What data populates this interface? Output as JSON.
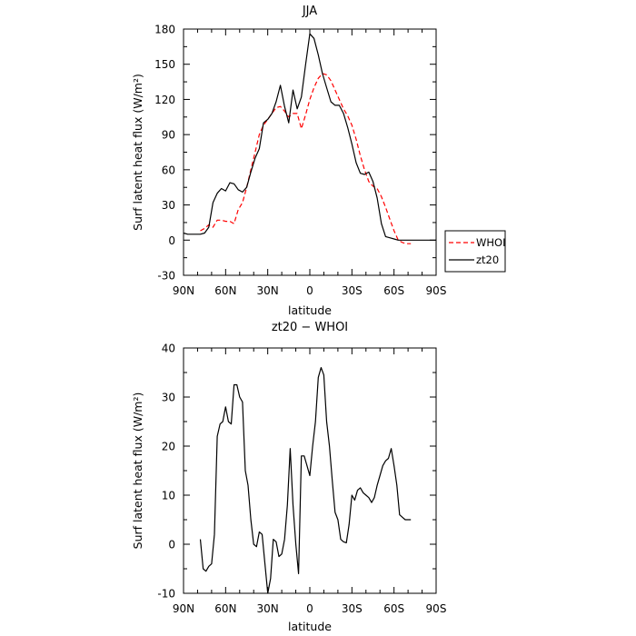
{
  "chart_data": [
    {
      "type": "line",
      "title": "JJA",
      "xlabel": "latitude",
      "ylabel": "Surf latent heat flux (W/m²)",
      "xlim": [
        90,
        -90
      ],
      "ylim": [
        -30,
        180
      ],
      "x_ticks": [
        90,
        60,
        30,
        0,
        -30,
        -60,
        -90
      ],
      "x_tick_labels": [
        "90N",
        "60N",
        "30N",
        "0",
        "30S",
        "60S",
        "90S"
      ],
      "y_ticks": [
        -30,
        0,
        30,
        60,
        90,
        120,
        150,
        180
      ],
      "y_tick_labels": [
        "-30",
        "0",
        "30",
        "60",
        "90",
        "120",
        "150",
        "180"
      ],
      "legend_position": "right",
      "series": [
        {
          "name": "WHOI",
          "color": "#ff0000",
          "dash": "dashed",
          "x": [
            78,
            75,
            72,
            69,
            66,
            63,
            60,
            57,
            54,
            51,
            48,
            45,
            42,
            39,
            36,
            33,
            30,
            27,
            24,
            21,
            18,
            15,
            12,
            9,
            6,
            3,
            0,
            -3,
            -6,
            -9,
            -12,
            -15,
            -18,
            -21,
            -24,
            -27,
            -30,
            -33,
            -36,
            -39,
            -42,
            -45,
            -48,
            -51,
            -54,
            -57,
            -60,
            -63,
            -66,
            -69,
            -72
          ],
          "values": [
            8,
            10,
            13,
            11,
            17,
            17,
            16,
            16,
            14,
            26,
            32,
            45,
            60,
            75,
            90,
            98,
            103,
            108,
            113,
            114,
            110,
            105,
            108,
            108,
            95,
            107,
            120,
            130,
            138,
            142,
            141,
            136,
            128,
            120,
            112,
            106,
            98,
            86,
            72,
            60,
            50,
            46,
            44,
            37,
            28,
            18,
            8,
            0,
            -2,
            -3,
            -3
          ]
        },
        {
          "name": "zt20",
          "color": "#000000",
          "dash": "solid",
          "x": [
            90,
            87,
            84,
            81,
            78,
            75,
            72,
            69,
            66,
            63,
            60,
            57,
            54,
            51,
            48,
            45,
            42,
            39,
            36,
            33,
            30,
            27,
            24,
            21,
            18,
            15,
            12,
            9,
            6,
            3,
            0,
            -3,
            -6,
            -9,
            -12,
            -15,
            -18,
            -21,
            -24,
            -27,
            -30,
            -33,
            -36,
            -39,
            -42,
            -45,
            -48,
            -51,
            -54,
            -57,
            -60,
            -63,
            -66,
            -69,
            -72,
            -75,
            -78,
            -81,
            -84,
            -87,
            -90
          ],
          "values": [
            6,
            5,
            5,
            5,
            5,
            6,
            11,
            32,
            40,
            44,
            42,
            49,
            48,
            43,
            41,
            45,
            58,
            70,
            78,
            100,
            103,
            108,
            118,
            132,
            114,
            100,
            128,
            112,
            122,
            150,
            176,
            172,
            158,
            142,
            130,
            118,
            115,
            115,
            108,
            96,
            82,
            66,
            57,
            56,
            58,
            50,
            36,
            14,
            3,
            2,
            1,
            0,
            0,
            0,
            0,
            0,
            0,
            0,
            0,
            0,
            0
          ]
        }
      ]
    },
    {
      "type": "line",
      "title": "zt20 − WHOI",
      "xlabel": "latitude",
      "ylabel": "Surf latent heat flux (W/m²)",
      "xlim": [
        90,
        -90
      ],
      "ylim": [
        -10,
        40
      ],
      "x_ticks": [
        90,
        60,
        30,
        0,
        -30,
        -60,
        -90
      ],
      "x_tick_labels": [
        "90N",
        "60N",
        "30N",
        "0",
        "30S",
        "60S",
        "90S"
      ],
      "y_ticks": [
        -10,
        0,
        10,
        20,
        30,
        40
      ],
      "y_tick_labels": [
        "-10",
        "0",
        "10",
        "20",
        "30",
        "40"
      ],
      "series": [
        {
          "color": "#000000",
          "dash": "solid",
          "x": [
            78,
            76,
            74,
            72,
            70,
            68,
            66,
            64,
            62,
            60,
            58,
            56,
            54,
            52,
            50,
            48,
            46,
            44,
            42,
            40,
            38,
            36,
            34,
            32,
            30,
            28,
            26,
            24,
            22,
            20,
            18,
            16,
            14,
            12,
            10,
            8,
            6,
            4,
            2,
            0,
            -2,
            -4,
            -6,
            -8,
            -10,
            -12,
            -14,
            -16,
            -18,
            -20,
            -22,
            -24,
            -26,
            -28,
            -30,
            -32,
            -34,
            -36,
            -38,
            -40,
            -42,
            -44,
            -46,
            -48,
            -50,
            -52,
            -54,
            -56,
            -58,
            -60,
            -62,
            -64,
            -66,
            -68,
            -70,
            -72
          ],
          "values": [
            1,
            -5,
            -5.5,
            -4.5,
            -4,
            2,
            22,
            24.5,
            25,
            28,
            25,
            24.5,
            32.5,
            32.5,
            30,
            29,
            15,
            12,
            5,
            0,
            -0.5,
            2.5,
            2,
            -4,
            -10,
            -7,
            1,
            0.5,
            -2.5,
            -2,
            1,
            8,
            19.5,
            8,
            0,
            -6,
            18,
            18,
            16,
            14,
            20,
            25,
            34,
            36,
            34.5,
            25,
            20,
            13,
            6.5,
            5,
            1,
            0.5,
            0.3,
            4,
            10,
            9,
            11,
            11.5,
            10.5,
            10,
            9.5,
            8.5,
            9.5,
            12,
            14,
            16,
            17,
            17.5,
            19.5,
            16,
            12,
            6,
            5.5,
            5,
            5,
            5
          ]
        }
      ]
    }
  ]
}
